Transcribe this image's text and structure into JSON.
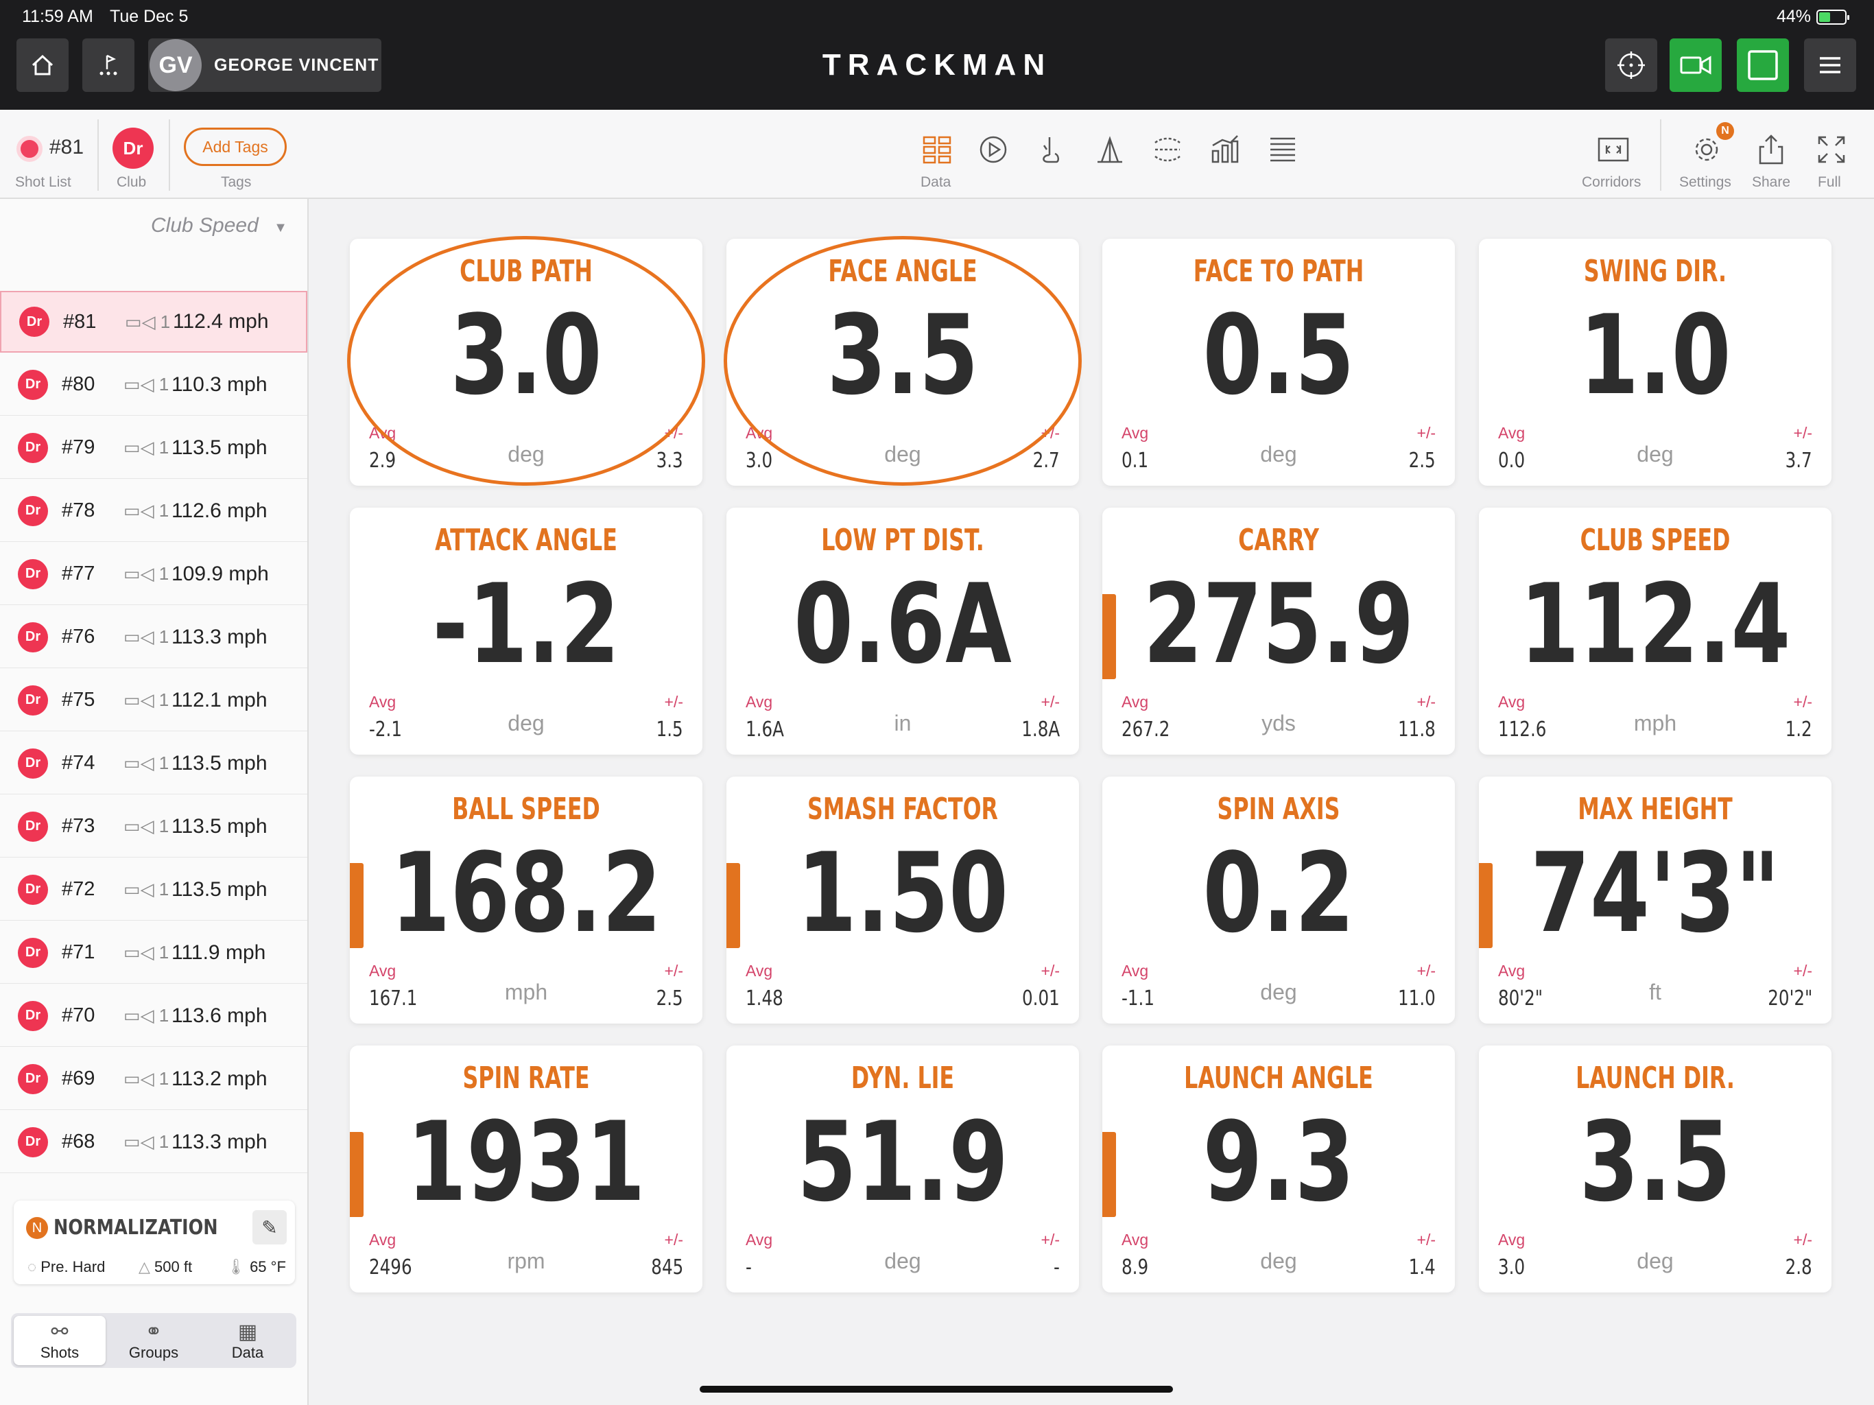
{
  "status_bar": {
    "time": "11:59 AM",
    "date": "Tue Dec 5",
    "battery": "44%",
    "battery_level": 0.44
  },
  "header": {
    "player_initials": "GV",
    "player_name": "GEORGE VINCENT",
    "brand": "TRACKMAN"
  },
  "toolbar": {
    "shot_number": "#81",
    "shot_list_label": "Shot List",
    "club_badge": "Dr",
    "club_label": "Club",
    "add_tags_label": "Add Tags",
    "tags_label": "Tags",
    "data_label": "Data",
    "corridors_label": "Corridors",
    "settings_label": "Settings",
    "share_label": "Share",
    "full_label": "Full",
    "settings_badge": "N"
  },
  "sidebar": {
    "sort_label": "Club Speed",
    "shots": [
      {
        "club": "Dr",
        "num": "#81",
        "cam": "1",
        "speed": "112.4 mph",
        "selected": true
      },
      {
        "club": "Dr",
        "num": "#80",
        "cam": "1",
        "speed": "110.3 mph"
      },
      {
        "club": "Dr",
        "num": "#79",
        "cam": "1",
        "speed": "113.5 mph"
      },
      {
        "club": "Dr",
        "num": "#78",
        "cam": "1",
        "speed": "112.6 mph"
      },
      {
        "club": "Dr",
        "num": "#77",
        "cam": "1",
        "speed": "109.9 mph"
      },
      {
        "club": "Dr",
        "num": "#76",
        "cam": "1",
        "speed": "113.3 mph"
      },
      {
        "club": "Dr",
        "num": "#75",
        "cam": "1",
        "speed": "112.1 mph"
      },
      {
        "club": "Dr",
        "num": "#74",
        "cam": "1",
        "speed": "113.5 mph"
      },
      {
        "club": "Dr",
        "num": "#73",
        "cam": "1",
        "speed": "113.5 mph"
      },
      {
        "club": "Dr",
        "num": "#72",
        "cam": "1",
        "speed": "113.5 mph"
      },
      {
        "club": "Dr",
        "num": "#71",
        "cam": "1",
        "speed": "111.9 mph"
      },
      {
        "club": "Dr",
        "num": "#70",
        "cam": "1",
        "speed": "113.6 mph"
      },
      {
        "club": "Dr",
        "num": "#69",
        "cam": "1",
        "speed": "113.2 mph"
      },
      {
        "club": "Dr",
        "num": "#68",
        "cam": "1",
        "speed": "113.3 mph"
      }
    ],
    "normalization": {
      "title": "NORMALIZATION",
      "icon_letter": "N",
      "surface": "Pre. Hard",
      "altitude": "500 ft",
      "temperature": "65 °F"
    },
    "segments": {
      "shots": "Shots",
      "groups": "Groups",
      "data": "Data"
    }
  },
  "tiles": [
    {
      "title": "CLUB PATH",
      "value": "3.0",
      "unit": "deg",
      "avg_label": "Avg",
      "avg": "2.9",
      "pm_label": "+/-",
      "pm": "3.3",
      "normalized": false,
      "circled": true
    },
    {
      "title": "FACE ANGLE",
      "value": "3.5",
      "unit": "deg",
      "avg_label": "Avg",
      "avg": "3.0",
      "pm_label": "+/-",
      "pm": "2.7",
      "normalized": false,
      "circled": true
    },
    {
      "title": "FACE TO PATH",
      "value": "0.5",
      "unit": "deg",
      "avg_label": "Avg",
      "avg": "0.1",
      "pm_label": "+/-",
      "pm": "2.5",
      "normalized": false
    },
    {
      "title": "SWING DIR.",
      "value": "1.0",
      "unit": "deg",
      "avg_label": "Avg",
      "avg": "0.0",
      "pm_label": "+/-",
      "pm": "3.7",
      "normalized": false
    },
    {
      "title": "ATTACK ANGLE",
      "value": "-1.2",
      "unit": "deg",
      "avg_label": "Avg",
      "avg": "-2.1",
      "pm_label": "+/-",
      "pm": "1.5",
      "normalized": false
    },
    {
      "title": "LOW PT DIST.",
      "value": "0.6A",
      "unit": "in",
      "avg_label": "Avg",
      "avg": "1.6A",
      "pm_label": "+/-",
      "pm": "1.8A",
      "normalized": false
    },
    {
      "title": "CARRY",
      "value": "275.9",
      "unit": "yds",
      "avg_label": "Avg",
      "avg": "267.2",
      "pm_label": "+/-",
      "pm": "11.8",
      "normalized": true
    },
    {
      "title": "CLUB SPEED",
      "value": "112.4",
      "unit": "mph",
      "avg_label": "Avg",
      "avg": "112.6",
      "pm_label": "+/-",
      "pm": "1.2",
      "normalized": false
    },
    {
      "title": "BALL SPEED",
      "value": "168.2",
      "unit": "mph",
      "avg_label": "Avg",
      "avg": "167.1",
      "pm_label": "+/-",
      "pm": "2.5",
      "normalized": true
    },
    {
      "title": "SMASH FACTOR",
      "value": "1.50",
      "unit": "",
      "avg_label": "Avg",
      "avg": "1.48",
      "pm_label": "+/-",
      "pm": "0.01",
      "normalized": true
    },
    {
      "title": "SPIN AXIS",
      "value": "0.2",
      "unit": "deg",
      "avg_label": "Avg",
      "avg": "-1.1",
      "pm_label": "+/-",
      "pm": "11.0",
      "normalized": false
    },
    {
      "title": "MAX HEIGHT",
      "value": "74'3\"",
      "unit": "ft",
      "avg_label": "Avg",
      "avg": "80'2\"",
      "pm_label": "+/-",
      "pm": "20'2\"",
      "normalized": true
    },
    {
      "title": "SPIN RATE",
      "value": "1931",
      "unit": "rpm",
      "avg_label": "Avg",
      "avg": "2496",
      "pm_label": "+/-",
      "pm": "845",
      "normalized": true
    },
    {
      "title": "DYN. LIE",
      "value": "51.9",
      "unit": "deg",
      "avg_label": "Avg",
      "avg": "-",
      "pm_label": "+/-",
      "pm": "-",
      "normalized": false
    },
    {
      "title": "LAUNCH ANGLE",
      "value": "9.3",
      "unit": "deg",
      "avg_label": "Avg",
      "avg": "8.9",
      "pm_label": "+/-",
      "pm": "1.4",
      "normalized": true
    },
    {
      "title": "LAUNCH DIR.",
      "value": "3.5",
      "unit": "deg",
      "avg_label": "Avg",
      "avg": "3.0",
      "pm_label": "+/-",
      "pm": "2.8",
      "normalized": false
    }
  ],
  "colors": {
    "accent": "#e2731f",
    "club_badge": "#ee3552",
    "avg_label": "#d4446a",
    "video_button": "#27a93f"
  }
}
